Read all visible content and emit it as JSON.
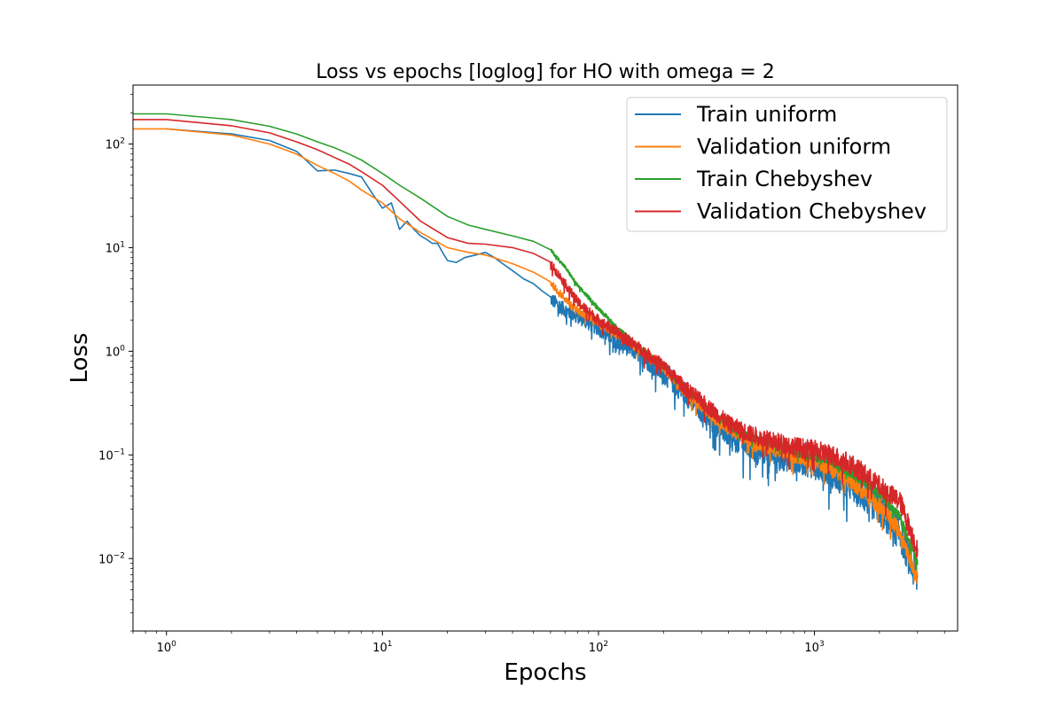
{
  "chart_data": {
    "type": "line",
    "title": "Loss vs epochs [loglog] for HO with omega = 2",
    "xlabel": "Epochs",
    "ylabel": "Loss",
    "xscale": "log",
    "yscale": "log",
    "xlim": [
      0.7,
      4600
    ],
    "ylim": [
      0.002,
      370
    ],
    "x_ticks": [
      {
        "value": 1,
        "base": "10",
        "exp": "0"
      },
      {
        "value": 10,
        "base": "10",
        "exp": "1"
      },
      {
        "value": 100,
        "base": "10",
        "exp": "2"
      },
      {
        "value": 1000,
        "base": "10",
        "exp": "3"
      }
    ],
    "y_ticks": [
      {
        "value": 0.01,
        "base": "10",
        "exp": "−2"
      },
      {
        "value": 0.1,
        "base": "10",
        "exp": "−1"
      },
      {
        "value": 1,
        "base": "10",
        "exp": "0"
      },
      {
        "value": 10,
        "base": "10",
        "exp": "1"
      },
      {
        "value": 100,
        "base": "10",
        "exp": "2"
      }
    ],
    "grid": false,
    "legend_position": "top-right",
    "series": [
      {
        "name": "Train uniform",
        "color": "#1f77b4",
        "noise": 0.16,
        "x": [
          1,
          2,
          3,
          4,
          5,
          6,
          7,
          8,
          9,
          10,
          11,
          12,
          13,
          14,
          15,
          16,
          17,
          18,
          19,
          20,
          22,
          24,
          27,
          30,
          33,
          36,
          40,
          45,
          50,
          55,
          60,
          70,
          80,
          90,
          100,
          120,
          150,
          200,
          250,
          300,
          400,
          500,
          600,
          700,
          800,
          900,
          1000,
          1200,
          1500,
          2000,
          2500,
          3000
        ],
        "y": [
          140,
          125,
          108,
          85,
          55,
          56,
          52,
          48,
          33,
          24,
          27,
          15,
          18,
          15,
          13,
          12,
          11,
          11,
          9,
          7.5,
          7.2,
          8,
          8.5,
          9,
          8,
          7,
          6,
          5,
          4.5,
          3.8,
          3.2,
          2.5,
          2.2,
          1.9,
          1.7,
          1.3,
          1.0,
          0.62,
          0.4,
          0.27,
          0.16,
          0.12,
          0.11,
          0.1,
          0.095,
          0.09,
          0.085,
          0.07,
          0.05,
          0.03,
          0.017,
          0.006
        ]
      },
      {
        "name": "Validation uniform",
        "color": "#ff7f0e",
        "noise": 0.08,
        "x": [
          0.7,
          1,
          2,
          3,
          4,
          5,
          6,
          7,
          8,
          10,
          12,
          15,
          20,
          25,
          30,
          40,
          50,
          60,
          70,
          80,
          100,
          120,
          150,
          200,
          250,
          300,
          400,
          500,
          600,
          700,
          800,
          900,
          1000,
          1200,
          1500,
          2000,
          2500,
          3000
        ],
        "y": [
          140,
          140,
          122,
          100,
          80,
          62,
          52,
          44,
          36,
          27,
          19,
          14,
          10,
          9,
          8.5,
          7,
          5.8,
          4.6,
          3.2,
          2.5,
          1.9,
          1.5,
          1.1,
          0.7,
          0.42,
          0.3,
          0.18,
          0.14,
          0.12,
          0.11,
          0.1,
          0.095,
          0.088,
          0.075,
          0.055,
          0.032,
          0.018,
          0.0065
        ]
      },
      {
        "name": "Train Chebyshev",
        "color": "#2ca02c",
        "noise": 0.04,
        "x": [
          0.7,
          1,
          2,
          3,
          4,
          5,
          6,
          7,
          8,
          10,
          12,
          15,
          20,
          25,
          30,
          40,
          50,
          60,
          70,
          80,
          100,
          120,
          150,
          200,
          250,
          300,
          400,
          500,
          600,
          700,
          800,
          900,
          1000,
          1200,
          1500,
          2000,
          2500,
          3000
        ],
        "y": [
          195,
          195,
          172,
          148,
          125,
          105,
          92,
          80,
          70,
          52,
          40,
          30,
          20,
          16.5,
          15,
          13,
          11.5,
          9.5,
          6.5,
          4.3,
          2.6,
          1.75,
          1.15,
          0.72,
          0.45,
          0.32,
          0.19,
          0.15,
          0.13,
          0.12,
          0.11,
          0.1,
          0.095,
          0.085,
          0.065,
          0.042,
          0.025,
          0.009
        ]
      },
      {
        "name": "Validation Chebyshev",
        "color": "#d62728",
        "noise": 0.1,
        "x": [
          0.7,
          1,
          2,
          3,
          4,
          5,
          6,
          7,
          8,
          10,
          12,
          15,
          20,
          25,
          30,
          40,
          50,
          60,
          70,
          80,
          100,
          120,
          150,
          200,
          250,
          300,
          400,
          500,
          600,
          700,
          800,
          900,
          1000,
          1200,
          1500,
          2000,
          2500,
          3000
        ],
        "y": [
          172,
          172,
          150,
          128,
          105,
          88,
          74,
          64,
          54,
          40,
          28,
          18,
          12.5,
          11,
          10.8,
          10,
          8.8,
          7,
          4.5,
          3.0,
          2.0,
          1.55,
          1.12,
          0.72,
          0.45,
          0.33,
          0.2,
          0.16,
          0.14,
          0.13,
          0.12,
          0.115,
          0.11,
          0.1,
          0.08,
          0.05,
          0.035,
          0.012
        ]
      }
    ]
  }
}
